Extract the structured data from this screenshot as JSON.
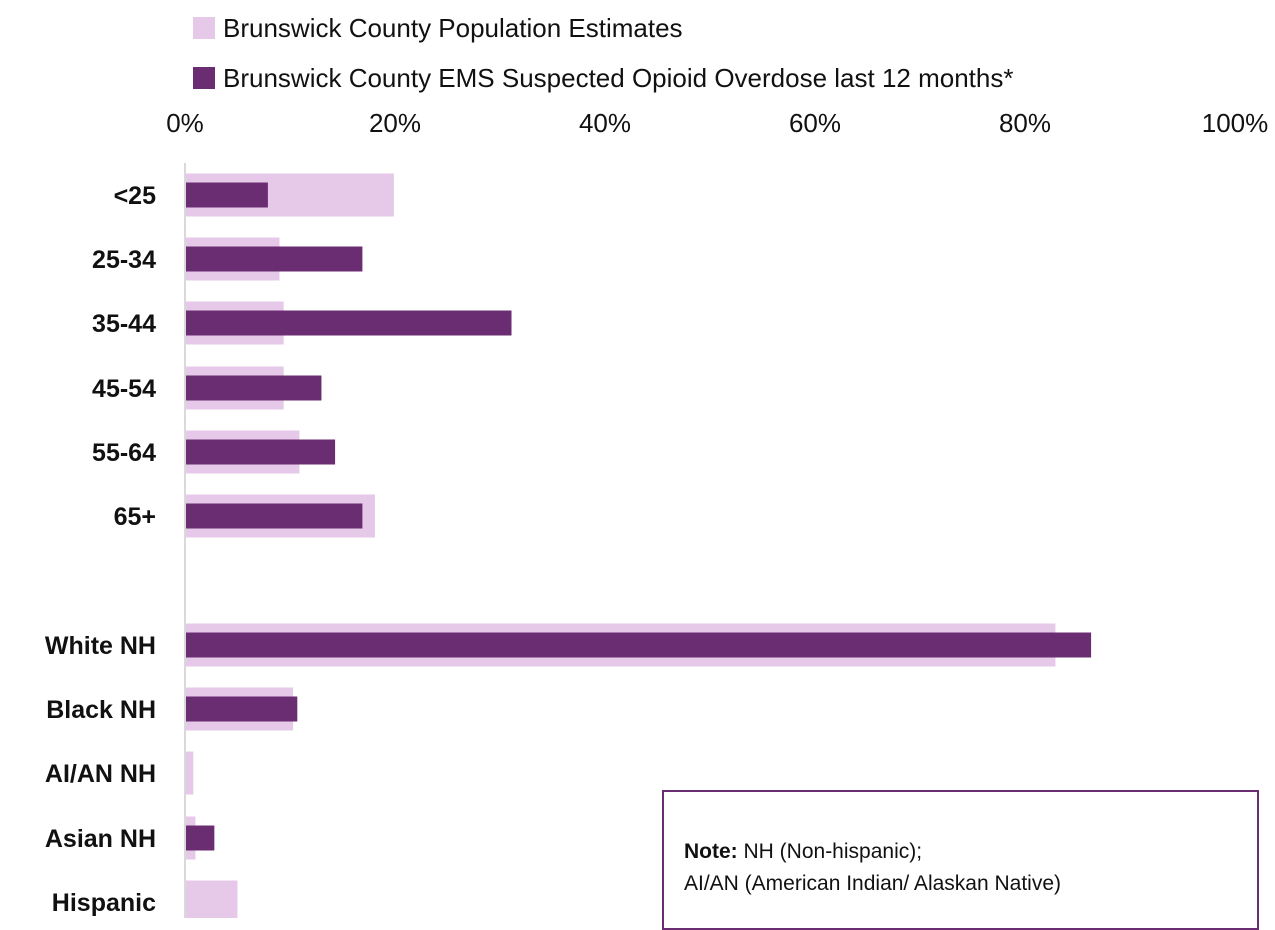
{
  "chart_data": {
    "type": "bar",
    "orientation": "horizontal",
    "categories": [
      "<25",
      "25-34",
      "35-44",
      "45-54",
      "55-64",
      "65+",
      "White NH",
      "Black NH",
      "AI/AN NH",
      "Asian NH",
      "Hispanic"
    ],
    "series": [
      {
        "name": "Brunswick County Population Estimates",
        "color": "#e6c8e8",
        "values": [
          19.8,
          8.9,
          9.3,
          9.3,
          10.8,
          18.0,
          82.8,
          10.2,
          0.7,
          0.9,
          4.9
        ]
      },
      {
        "name": "Brunswick County EMS Suspected Opioid Overdose last 12 months*",
        "color": "#6b2d72",
        "values": [
          7.8,
          16.8,
          31.0,
          12.9,
          14.2,
          16.8,
          86.2,
          10.6,
          0.0,
          2.7,
          0.0
        ]
      }
    ],
    "xlim": [
      0,
      100
    ],
    "x_ticks": [
      "0%",
      "20%",
      "40%",
      "60%",
      "80%",
      "100%"
    ],
    "legend_position": "top",
    "grid": false
  },
  "note": {
    "label": "Note:",
    "line1": " NH (Non-hispanic);",
    "line2": "AI/AN (American Indian/ Alaskan Native)"
  }
}
